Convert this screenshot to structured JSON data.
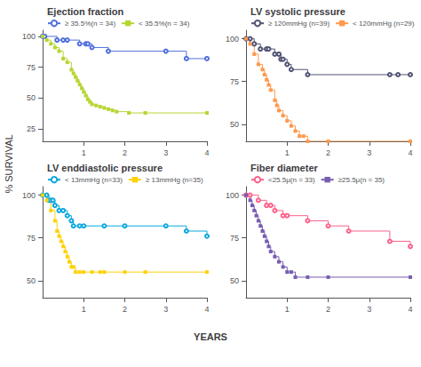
{
  "xlabel": "YEARS",
  "ylabel": "% SURVIVAL",
  "chart_data": [
    {
      "type": "line",
      "line_style": "step",
      "title": "Ejection fraction",
      "xlim": [
        0,
        4
      ],
      "xticks": [
        1,
        2,
        3,
        4
      ],
      "ylim": [
        15,
        105
      ],
      "yticks": [
        25,
        50,
        75,
        100
      ],
      "grid": false,
      "legend": "top",
      "series": [
        {
          "name": "≥ 35.5%(n = 34)",
          "marker": "open_circle",
          "x": [
            0,
            0.05,
            0.35,
            0.5,
            0.6,
            0.9,
            1.05,
            1.1,
            1.2,
            1.6,
            3.0,
            3.5,
            4.0
          ],
          "values": [
            100,
            100,
            97,
            97,
            97,
            94,
            94,
            94,
            91,
            88,
            88,
            82,
            82
          ]
        },
        {
          "name": "< 35.5%(n = 34)",
          "marker": "square",
          "x": [
            0,
            0.1,
            0.2,
            0.3,
            0.4,
            0.5,
            0.6,
            0.7,
            0.75,
            0.8,
            0.85,
            0.9,
            0.95,
            1.0,
            1.05,
            1.1,
            1.15,
            1.2,
            1.3,
            1.4,
            1.5,
            1.6,
            1.7,
            1.8,
            2.1,
            2.5,
            4.0
          ],
          "values": [
            100,
            97,
            94,
            91,
            88,
            82,
            79,
            73,
            70,
            67,
            64,
            61,
            58,
            55,
            52,
            49,
            47,
            45,
            44,
            43,
            42,
            41,
            40,
            39,
            38,
            38,
            38
          ]
        }
      ]
    },
    {
      "type": "line",
      "line_style": "step",
      "title": "LV systolic pressure",
      "xlim": [
        0,
        4
      ],
      "xticks": [
        1,
        2,
        3,
        4
      ],
      "ylim": [
        40,
        105
      ],
      "yticks": [
        50,
        75,
        100
      ],
      "grid": false,
      "legend": "top",
      "series": [
        {
          "name": "≥ 120mmHg (n=39)",
          "marker": "open_circle",
          "x": [
            0,
            0.1,
            0.2,
            0.35,
            0.5,
            0.55,
            0.7,
            0.8,
            0.85,
            0.9,
            1.0,
            1.1,
            1.5,
            3.5,
            3.7,
            4.0
          ],
          "values": [
            100,
            100,
            97,
            94,
            94,
            94,
            91,
            91,
            88,
            88,
            85,
            82,
            79,
            79,
            79,
            79
          ]
        },
        {
          "name": "< 120mmHg (n=29)",
          "marker": "square",
          "x": [
            0,
            0.1,
            0.2,
            0.3,
            0.4,
            0.45,
            0.5,
            0.55,
            0.6,
            0.7,
            0.75,
            0.8,
            0.9,
            1.0,
            1.1,
            1.2,
            1.3,
            1.4,
            1.5,
            2.0,
            4.0
          ],
          "values": [
            100,
            97,
            91,
            85,
            82,
            79,
            76,
            73,
            70,
            64,
            61,
            58,
            55,
            52,
            49,
            46,
            43,
            43,
            40,
            40,
            40
          ]
        }
      ]
    },
    {
      "type": "line",
      "line_style": "step",
      "title": "LV enddiastolic pressure",
      "xlim": [
        0,
        4
      ],
      "xticks": [
        1,
        2,
        3,
        4
      ],
      "ylim": [
        40,
        105
      ],
      "yticks": [
        50,
        75,
        100
      ],
      "grid": false,
      "legend": "top",
      "series": [
        {
          "name": "< 13mmHg (n=33)",
          "marker": "open_circle",
          "x": [
            0,
            0.1,
            0.15,
            0.2,
            0.25,
            0.3,
            0.4,
            0.5,
            0.6,
            0.7,
            0.75,
            0.9,
            1.0,
            1.5,
            2.0,
            3.0,
            3.5,
            4.0
          ],
          "values": [
            100,
            100,
            97,
            97,
            97,
            94,
            91,
            91,
            88,
            85,
            82,
            82,
            82,
            82,
            82,
            82,
            79,
            76
          ]
        },
        {
          "name": "≥ 13mmHg (n=35)",
          "marker": "square",
          "x": [
            0,
            0.1,
            0.2,
            0.3,
            0.35,
            0.4,
            0.45,
            0.5,
            0.55,
            0.6,
            0.65,
            0.7,
            0.75,
            0.8,
            0.9,
            1.0,
            1.2,
            1.4,
            1.5,
            2.0,
            2.5,
            4.0
          ],
          "values": [
            100,
            97,
            91,
            85,
            79,
            76,
            73,
            70,
            67,
            64,
            61,
            58,
            58,
            55,
            55,
            55,
            55,
            55,
            55,
            55,
            55,
            55
          ]
        }
      ]
    },
    {
      "type": "line",
      "line_style": "step",
      "title": "Fiber diameter",
      "xlim": [
        0,
        4
      ],
      "xticks": [
        1,
        2,
        3,
        4
      ],
      "ylim": [
        40,
        105
      ],
      "yticks": [
        50,
        75,
        100
      ],
      "grid": false,
      "legend": "top",
      "series": [
        {
          "name": "<25.5μ(n = 33)",
          "marker": "open_circle",
          "x": [
            0,
            0.1,
            0.3,
            0.5,
            0.6,
            0.7,
            0.9,
            1.0,
            1.5,
            2.0,
            2.5,
            3.5,
            4.0
          ],
          "values": [
            100,
            100,
            97,
            94,
            94,
            91,
            88,
            88,
            85,
            82,
            79,
            73,
            70
          ]
        },
        {
          "name": "≥25.5μ(n = 35)",
          "marker": "square",
          "x": [
            0,
            0.1,
            0.15,
            0.2,
            0.25,
            0.3,
            0.35,
            0.4,
            0.45,
            0.5,
            0.55,
            0.6,
            0.7,
            0.8,
            0.9,
            1.0,
            1.1,
            1.2,
            1.5,
            2.0,
            4.0
          ],
          "values": [
            100,
            97,
            94,
            91,
            88,
            85,
            82,
            79,
            76,
            73,
            70,
            67,
            64,
            61,
            58,
            55,
            55,
            52,
            52,
            52,
            52
          ]
        }
      ]
    }
  ]
}
